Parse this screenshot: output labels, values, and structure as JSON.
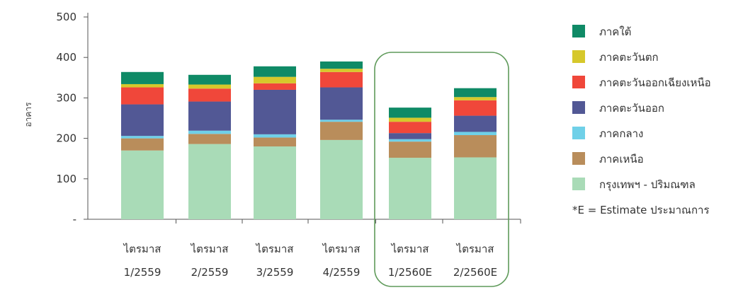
{
  "chart_data": {
    "type": "bar",
    "stacked": true,
    "ylabel": "อาคาร",
    "ylim": [
      0,
      500
    ],
    "yticks": [
      "-",
      "100",
      "200",
      "300",
      "400",
      "500"
    ],
    "grid": false,
    "legend_position": "right",
    "categories": [
      [
        "ไตรมาส",
        "1/2559"
      ],
      [
        "ไตรมาส",
        "2/2559"
      ],
      [
        "ไตรมาส",
        "3/2559"
      ],
      [
        "ไตรมาส",
        "4/2559"
      ],
      [
        "ไตรมาส",
        "1/2560E"
      ],
      [
        "ไตรมาส",
        "2/2560E"
      ]
    ],
    "series": [
      {
        "name": "กรุงเทพฯ - ปริมณฑล",
        "color": "#a9dbb7",
        "values": [
          170,
          186,
          180,
          196,
          152,
          153
        ]
      },
      {
        "name": "ภาคเหนือ",
        "color": "#b98d5b",
        "values": [
          30,
          25,
          22,
          45,
          40,
          55
        ]
      },
      {
        "name": "ภาคกลาง",
        "color": "#6fd0e8",
        "values": [
          6,
          8,
          8,
          5,
          6,
          8
        ]
      },
      {
        "name": "ภาคตะวันออก",
        "color": "#525895",
        "values": [
          78,
          72,
          110,
          80,
          15,
          40
        ]
      },
      {
        "name": "ภาคตะวันออกเฉียงเหนือ",
        "color": "#f0473a",
        "values": [
          42,
          32,
          16,
          38,
          28,
          38
        ]
      },
      {
        "name": "ภาคตะวันตก",
        "color": "#d6c82b",
        "values": [
          8,
          10,
          16,
          8,
          10,
          8
        ]
      },
      {
        "name": "ภาคใต้",
        "color": "#0f8a66",
        "values": [
          30,
          24,
          26,
          18,
          25,
          22
        ]
      }
    ],
    "highlight_categories": [
      4,
      5
    ],
    "highlight_color": "#5f9a5a",
    "note": "*E = Estimate ประมาณการ"
  }
}
